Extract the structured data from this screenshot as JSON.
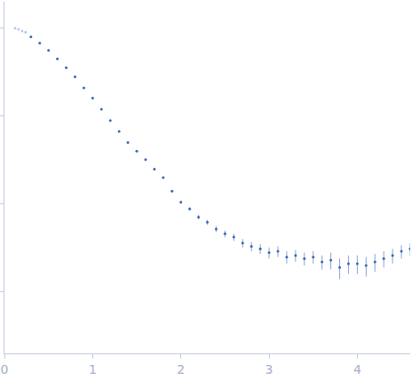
{
  "chart_data": {
    "type": "scatter",
    "log": "y",
    "grid": false,
    "tick_labels": "x",
    "marker": "circle",
    "xlim": [
      0,
      4.6
    ],
    "xticks": [
      0,
      1,
      2,
      3,
      4
    ],
    "ylim": [
      0.0002,
      2
    ],
    "yticks": [
      0.001,
      0.01,
      0.1,
      1
    ],
    "series": [
      {
        "color": "#b8c8e6",
        "x": [
          0.12,
          0.16,
          0.2,
          0.24
        ],
        "values": [
          1.0,
          0.97,
          0.93,
          0.9
        ],
        "errors": [
          0.01,
          0.01,
          0.01,
          0.01
        ]
      },
      {
        "color": "#3a66b5",
        "x": [
          0.3,
          0.4,
          0.5,
          0.6,
          0.7,
          0.8,
          0.9,
          1.0,
          1.1,
          1.2,
          1.3,
          1.4,
          1.5,
          1.6,
          1.7,
          1.8,
          1.9,
          2.0,
          2.1,
          2.2,
          2.3,
          2.4,
          2.5,
          2.6,
          2.7,
          2.8,
          2.9,
          3.0,
          3.1,
          3.2,
          3.3,
          3.4,
          3.5,
          3.6,
          3.7,
          3.8,
          3.9,
          4.0,
          4.1,
          4.2,
          4.3,
          4.4,
          4.5,
          4.6
        ],
        "values": [
          0.8,
          0.68,
          0.56,
          0.45,
          0.355,
          0.28,
          0.21,
          0.16,
          0.12,
          0.089,
          0.067,
          0.05,
          0.04,
          0.032,
          0.025,
          0.02,
          0.014,
          0.0105,
          0.0088,
          0.0071,
          0.0062,
          0.0052,
          0.0046,
          0.0042,
          0.0036,
          0.0033,
          0.0031,
          0.0028,
          0.0029,
          0.0025,
          0.0026,
          0.0024,
          0.0025,
          0.0022,
          0.0023,
          0.0019,
          0.0021,
          0.0021,
          0.002,
          0.0022,
          0.0024,
          0.0026,
          0.0029,
          0.0031
        ],
        "errors": [
          0.008,
          0.006,
          0.005,
          0.004,
          0.003,
          0.0025,
          0.002,
          0.0016,
          0.0013,
          0.001,
          0.0008,
          0.0007,
          0.0006,
          0.0005,
          0.0005,
          0.0004,
          0.0004,
          0.0004,
          0.0004,
          0.0004,
          0.0004,
          0.0004,
          0.0004,
          0.0004,
          0.0004,
          0.0004,
          0.0004,
          0.0004,
          0.0004,
          0.0004,
          0.0004,
          0.0004,
          0.0004,
          0.0004,
          0.0005,
          0.0005,
          0.0005,
          0.0005,
          0.0005,
          0.0005,
          0.0005,
          0.0005,
          0.0005,
          0.0005
        ]
      }
    ]
  }
}
